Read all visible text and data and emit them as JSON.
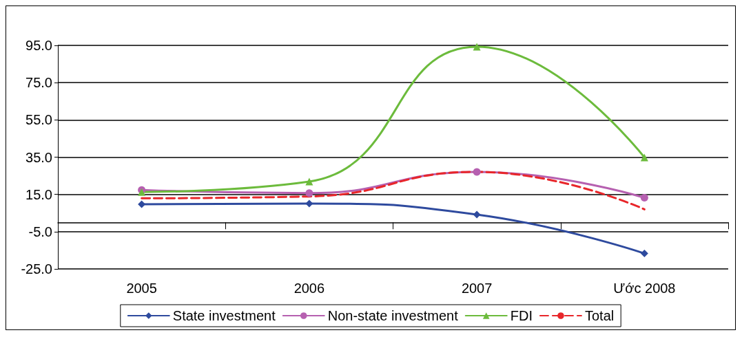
{
  "chart_data": {
    "type": "line",
    "categories": [
      "2005",
      "2006",
      "2007",
      "Ước 2008"
    ],
    "series": [
      {
        "name": "State investment",
        "color": "#2e4a9e",
        "marker": "diamond",
        "line_style": "solid",
        "values": [
          9.7,
          10.1,
          4.2,
          -16.7
        ]
      },
      {
        "name": "Non-state investment",
        "color": "#b660b0",
        "marker": "circle",
        "line_style": "solid",
        "values": [
          17.4,
          15.7,
          27.1,
          13.2
        ]
      },
      {
        "name": "FDI",
        "color": "#6cbb3c",
        "marker": "triangle",
        "line_style": "solid",
        "values": [
          16.3,
          21.9,
          94.3,
          34.8
        ]
      },
      {
        "name": "Total",
        "color": "#e8262a",
        "marker": "none",
        "line_style": "dashed",
        "values": [
          12.9,
          13.9,
          27.1,
          7.0
        ]
      }
    ],
    "ylim": [
      -25,
      95
    ],
    "yticks": [
      {
        "value": -25,
        "label": "-25.0"
      },
      {
        "value": -5,
        "label": "-5.0"
      },
      {
        "value": 15,
        "label": "15.0"
      },
      {
        "value": 35,
        "label": "35.0"
      },
      {
        "value": 55,
        "label": "55.0"
      },
      {
        "value": 75,
        "label": "75.0"
      },
      {
        "value": 95,
        "label": "95.0"
      }
    ],
    "grid": "y",
    "legend": "bottom"
  }
}
